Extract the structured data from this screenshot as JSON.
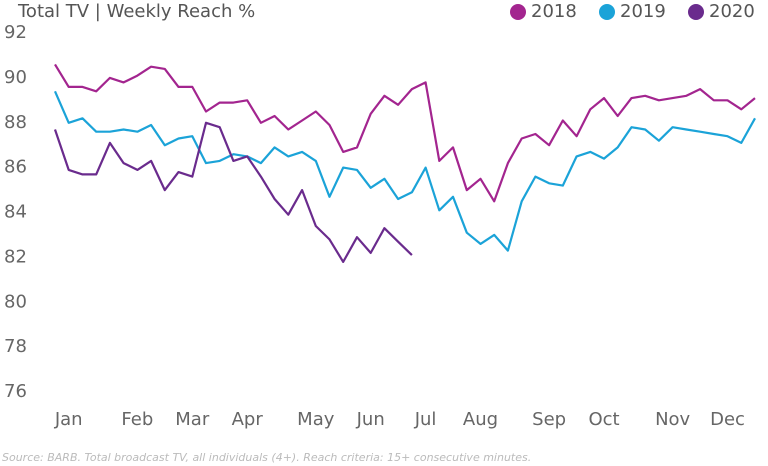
{
  "chart_data": {
    "type": "line",
    "title": "Total TV | Weekly Reach %",
    "source": "Source: BARB. Total broadcast TV, all individuals (4+). Reach criteria: 15+ consecutive minutes.",
    "categories": [
      null,
      "Jan",
      null,
      null,
      null,
      null,
      "Feb",
      null,
      null,
      null,
      "Mar",
      null,
      null,
      null,
      "Apr",
      null,
      null,
      null,
      null,
      "May",
      null,
      null,
      null,
      "Jun",
      null,
      null,
      null,
      "Jul",
      null,
      null,
      null,
      "Aug",
      null,
      null,
      null,
      null,
      "Sep",
      null,
      null,
      null,
      "Oct",
      null,
      null,
      null,
      null,
      "Nov",
      null,
      null,
      null,
      "Dec",
      null,
      null
    ],
    "series": [
      {
        "name": "2018",
        "color": "#a3258f",
        "values": [
          90.6,
          89.6,
          89.6,
          89.4,
          90.0,
          89.8,
          90.1,
          90.5,
          90.4,
          89.6,
          89.6,
          88.5,
          88.9,
          88.9,
          89.0,
          88.0,
          88.3,
          87.7,
          88.1,
          88.5,
          87.9,
          86.7,
          86.9,
          88.4,
          89.2,
          88.8,
          89.5,
          89.8,
          86.3,
          86.9,
          85.0,
          85.5,
          84.5,
          86.2,
          87.3,
          87.5,
          87.0,
          88.1,
          87.4,
          88.6,
          89.1,
          88.3,
          89.1,
          89.2,
          89.0,
          89.1,
          89.2,
          89.5,
          89.0,
          89.0,
          88.6,
          89.1
        ]
      },
      {
        "name": "2019",
        "color": "#1ba3d8",
        "values": [
          89.4,
          88.0,
          88.2,
          87.6,
          87.6,
          87.7,
          87.6,
          87.9,
          87.0,
          87.3,
          87.4,
          86.2,
          86.3,
          86.6,
          86.5,
          86.2,
          86.9,
          86.5,
          86.7,
          86.3,
          84.7,
          86.0,
          85.9,
          85.1,
          85.5,
          84.6,
          84.9,
          86.0,
          84.1,
          84.7,
          83.1,
          82.6,
          83.0,
          82.3,
          84.5,
          85.6,
          85.3,
          85.2,
          86.5,
          86.7,
          86.4,
          86.9,
          87.8,
          87.7,
          87.2,
          87.8,
          87.7,
          87.6,
          87.5,
          87.4,
          87.1,
          88.2
        ]
      },
      {
        "name": "2020",
        "color": "#6a2b8d",
        "values": [
          87.7,
          85.9,
          85.7,
          85.7,
          87.1,
          86.2,
          85.9,
          86.3,
          85.0,
          85.8,
          85.6,
          88.0,
          87.8,
          86.3,
          86.5,
          85.6,
          84.6,
          83.9,
          85.0,
          83.4,
          82.8,
          81.8,
          82.9,
          82.2,
          83.3,
          82.7,
          82.1,
          null,
          null,
          null,
          null,
          null,
          null,
          null,
          null,
          null,
          null,
          null,
          null,
          null,
          null,
          null,
          null,
          null,
          null,
          null,
          null,
          null,
          null,
          null,
          null,
          null
        ]
      }
    ],
    "ylim": [
      76,
      92
    ],
    "yticks": [
      76,
      78,
      80,
      82,
      84,
      86,
      88,
      90,
      92
    ],
    "grid": false,
    "legend": "top-right"
  }
}
